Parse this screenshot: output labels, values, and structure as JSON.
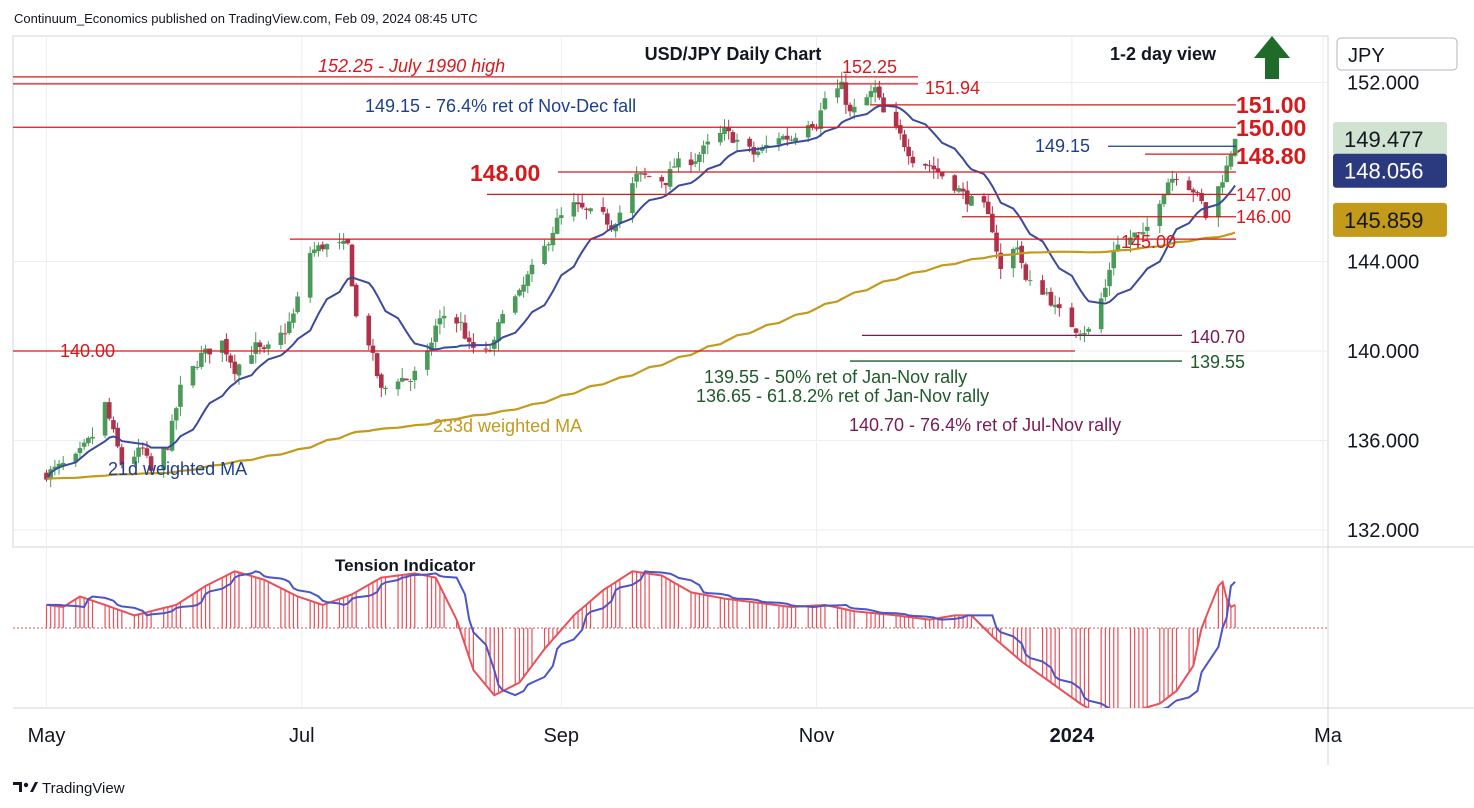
{
  "header": {
    "publisher": "Continuum_Economics published on TradingView.com, Feb 09, 2024 08:45 UTC",
    "chart_title": "USD/JPY Daily Chart",
    "view_label": "1-2 day view",
    "view_arrow": "up-arrow-icon",
    "currency": "JPY"
  },
  "footer": {
    "brand": "TradingView",
    "logo": "tradingview-logo-icon"
  },
  "colors": {
    "up_candle": "#4a9a5a",
    "down_candle": "#b0314a",
    "level_line": "#d7191c",
    "ma21": "#3a4a9c",
    "ma233": "#c49a1a",
    "tension_hist": "#e8515a",
    "tension_line_red": "#e8515a",
    "tension_line_blue": "#4b55c8",
    "text_blue": "#1e3f8f",
    "text_red": "#d7191c",
    "text_purple": "#7a1a55",
    "text_green": "#1e5a2a",
    "arrow_green": "#1e6b2a",
    "grid": "#eceef2"
  },
  "chart_data": {
    "type": "candlestick",
    "title": "USD/JPY Daily Chart",
    "symbol": "USD/JPY",
    "ylim": [
      131,
      153
    ],
    "y_ticks": [
      "132.000",
      "136.000",
      "140.000",
      "144.000",
      "152.000"
    ],
    "x_ticks": [
      "May",
      "Jul",
      "Sep",
      "Nov",
      "2024",
      "Ma"
    ],
    "price_tags": [
      {
        "value": "149.477",
        "style": "green"
      },
      {
        "value": "148.056",
        "style": "navy"
      },
      {
        "value": "145.859",
        "style": "gold"
      }
    ],
    "series": [
      {
        "name": "21d weighted MA",
        "kind": "line"
      },
      {
        "name": "233d weighted MA",
        "kind": "line"
      }
    ],
    "close_path": [
      [
        "2023-05-01",
        134.5
      ],
      [
        "2023-05-08",
        135.2
      ],
      [
        "2023-05-12",
        136.2
      ],
      [
        "2023-05-15",
        137.6
      ],
      [
        "2023-05-19",
        135.0
      ],
      [
        "2023-05-24",
        135.6
      ],
      [
        "2023-05-26",
        134.6
      ],
      [
        "2023-05-30",
        135.8
      ],
      [
        "2023-06-02",
        138.3
      ],
      [
        "2023-06-07",
        139.8
      ],
      [
        "2023-06-12",
        140.4
      ],
      [
        "2023-06-15",
        139.2
      ],
      [
        "2023-06-20",
        140.2
      ],
      [
        "2023-06-22",
        139.9
      ],
      [
        "2023-06-27",
        140.9
      ],
      [
        "2023-06-29",
        141.6
      ],
      [
        "2023-07-03",
        144.4
      ],
      [
        "2023-07-06",
        144.7
      ],
      [
        "2023-07-10",
        144.7
      ],
      [
        "2023-07-12",
        144.7
      ],
      [
        "2023-07-14",
        141.5
      ],
      [
        "2023-07-17",
        140.4
      ],
      [
        "2023-07-20",
        138.2
      ],
      [
        "2023-07-24",
        138.8
      ],
      [
        "2023-07-27",
        138.7
      ],
      [
        "2023-07-31",
        139.8
      ],
      [
        "2023-08-02",
        141.1
      ],
      [
        "2023-08-04",
        141.6
      ],
      [
        "2023-08-08",
        141.2
      ],
      [
        "2023-08-10",
        140.2
      ],
      [
        "2023-08-14",
        139.9
      ],
      [
        "2023-08-16",
        140.3
      ],
      [
        "2023-08-18",
        141.9
      ],
      [
        "2023-08-22",
        142.5
      ],
      [
        "2023-08-24",
        143.3
      ],
      [
        "2023-08-28",
        144.6
      ],
      [
        "2023-08-31",
        145.8
      ],
      [
        "2023-09-04",
        146.5
      ],
      [
        "2023-09-07",
        146.2
      ],
      [
        "2023-09-11",
        146.0
      ],
      [
        "2023-09-13",
        145.6
      ],
      [
        "2023-09-15",
        146.2
      ],
      [
        "2023-09-19",
        147.8
      ],
      [
        "2023-09-22",
        147.8
      ],
      [
        "2023-09-26",
        147.6
      ],
      [
        "2023-09-28",
        148.3
      ],
      [
        "2023-10-03",
        148.6
      ],
      [
        "2023-10-06",
        149.2
      ],
      [
        "2023-10-10",
        149.8
      ],
      [
        "2023-10-13",
        149.4
      ],
      [
        "2023-10-17",
        148.8
      ],
      [
        "2023-10-19",
        149.0
      ],
      [
        "2023-10-23",
        149.6
      ],
      [
        "2023-10-26",
        149.5
      ],
      [
        "2023-10-30",
        150.3
      ],
      [
        "2023-11-01",
        150.1
      ],
      [
        "2023-11-03",
        151.3
      ],
      [
        "2023-11-07",
        151.8
      ],
      [
        "2023-11-09",
        150.6
      ],
      [
        "2023-11-13",
        151.3
      ],
      [
        "2023-11-15",
        151.7
      ],
      [
        "2023-11-17",
        150.6
      ],
      [
        "2023-11-21",
        149.6
      ],
      [
        "2023-11-24",
        148.6
      ],
      [
        "2023-11-28",
        148.3
      ],
      [
        "2023-11-30",
        148.0
      ],
      [
        "2023-12-04",
        147.4
      ],
      [
        "2023-12-07",
        146.8
      ],
      [
        "2023-12-11",
        146.4
      ],
      [
        "2023-12-13",
        145.5
      ],
      [
        "2023-12-15",
        143.6
      ],
      [
        "2023-12-19",
        144.8
      ],
      [
        "2023-12-21",
        143.1
      ],
      [
        "2023-12-26",
        142.6
      ],
      [
        "2023-12-28",
        141.9
      ],
      [
        "2024-01-02",
        141.0
      ],
      [
        "2024-01-05",
        140.9
      ],
      [
        "2024-01-09",
        142.8
      ],
      [
        "2024-01-11",
        144.6
      ],
      [
        "2024-01-16",
        145.2
      ],
      [
        "2024-01-18",
        145.1
      ],
      [
        "2024-01-22",
        146.8
      ],
      [
        "2024-01-24",
        147.6
      ],
      [
        "2024-01-26",
        147.9
      ],
      [
        "2024-01-30",
        147.2
      ],
      [
        "2024-02-01",
        146.6
      ],
      [
        "2024-02-02",
        146.0
      ],
      [
        "2024-02-05",
        147.3
      ],
      [
        "2024-02-07",
        148.2
      ],
      [
        "2024-02-08",
        148.9
      ],
      [
        "2024-02-09",
        149.477
      ]
    ],
    "levels": [
      {
        "price": 152.25,
        "label": "152.25 - July 1990 high",
        "color": "red",
        "italic": true
      },
      {
        "price": 151.94,
        "label": "151.94",
        "color": "red"
      },
      {
        "price": 151.0,
        "label": "151.00",
        "color": "red",
        "big": true
      },
      {
        "price": 150.0,
        "label": "150.00",
        "color": "red",
        "big": true
      },
      {
        "price": 149.15,
        "label": "149.15",
        "color": "blue"
      },
      {
        "price": 148.8,
        "label": "148.80",
        "color": "red",
        "big": true
      },
      {
        "price": 148.0,
        "label": "148.00",
        "color": "red",
        "big": true
      },
      {
        "price": 147.0,
        "label": "147.00",
        "color": "red"
      },
      {
        "price": 146.0,
        "label": "146.00",
        "color": "red"
      },
      {
        "price": 145.0,
        "label": "145.00",
        "color": "red"
      },
      {
        "price": 140.7,
        "label": "140.70",
        "color": "purple"
      },
      {
        "price": 140.0,
        "label": "140.00",
        "color": "red"
      },
      {
        "price": 139.55,
        "label": "139.55",
        "color": "green"
      }
    ],
    "annotations": [
      {
        "text": "152.25",
        "color": "red"
      },
      {
        "text": "149.15 - 76.4% ret of Nov-Dec fall",
        "color": "blue"
      },
      {
        "text": "139.55 - 50% ret of Jan-Nov rally",
        "color": "green"
      },
      {
        "text": "136.65 - 61.8.2% ret of Jan-Nov rally",
        "color": "green"
      },
      {
        "text": "140.70 - 76.4% ret of Jul-Nov rally",
        "color": "purple"
      },
      {
        "text": "233d weighted MA",
        "color": "gold"
      },
      {
        "text": "21d weighted MA",
        "color": "blue"
      }
    ],
    "indicator": {
      "name": "Tension Indicator",
      "path": [
        [
          "2023-05-01",
          0.55
        ],
        [
          "2023-05-05",
          0.5
        ],
        [
          "2023-05-09",
          0.75
        ],
        [
          "2023-05-15",
          0.55
        ],
        [
          "2023-05-22",
          0.3
        ],
        [
          "2023-06-01",
          0.55
        ],
        [
          "2023-06-08",
          1.0
        ],
        [
          "2023-06-15",
          1.35
        ],
        [
          "2023-06-22",
          1.15
        ],
        [
          "2023-06-30",
          0.75
        ],
        [
          "2023-07-06",
          0.55
        ],
        [
          "2023-07-13",
          0.8
        ],
        [
          "2023-07-20",
          1.2
        ],
        [
          "2023-07-28",
          1.3
        ],
        [
          "2023-08-02",
          1.2
        ],
        [
          "2023-08-07",
          0.2
        ],
        [
          "2023-08-11",
          -1.0
        ],
        [
          "2023-08-16",
          -1.6
        ],
        [
          "2023-08-22",
          -1.3
        ],
        [
          "2023-08-28",
          -0.5
        ],
        [
          "2023-09-04",
          0.3
        ],
        [
          "2023-09-11",
          0.9
        ],
        [
          "2023-09-18",
          1.35
        ],
        [
          "2023-09-25",
          1.25
        ],
        [
          "2023-10-02",
          0.85
        ],
        [
          "2023-10-10",
          0.7
        ],
        [
          "2023-10-18",
          0.6
        ],
        [
          "2023-10-26",
          0.5
        ],
        [
          "2023-11-03",
          0.55
        ],
        [
          "2023-11-10",
          0.4
        ],
        [
          "2023-11-20",
          0.3
        ],
        [
          "2023-11-28",
          0.2
        ],
        [
          "2023-12-04",
          0.3
        ],
        [
          "2023-12-08",
          0.3
        ],
        [
          "2023-12-13",
          -0.2
        ],
        [
          "2023-12-20",
          -0.8
        ],
        [
          "2023-12-27",
          -1.3
        ],
        [
          "2024-01-03",
          -1.8
        ],
        [
          "2024-01-09",
          -2.15
        ],
        [
          "2024-01-15",
          -2.0
        ],
        [
          "2024-01-22",
          -1.8
        ],
        [
          "2024-01-26",
          -1.5
        ],
        [
          "2024-01-30",
          -0.9
        ],
        [
          "2024-02-01",
          0.0
        ],
        [
          "2024-02-03",
          0.5
        ],
        [
          "2024-02-05",
          1.0
        ],
        [
          "2024-02-06",
          1.1
        ],
        [
          "2024-02-07",
          0.7
        ],
        [
          "2024-02-08",
          0.5
        ],
        [
          "2024-02-09",
          0.55
        ]
      ]
    }
  }
}
